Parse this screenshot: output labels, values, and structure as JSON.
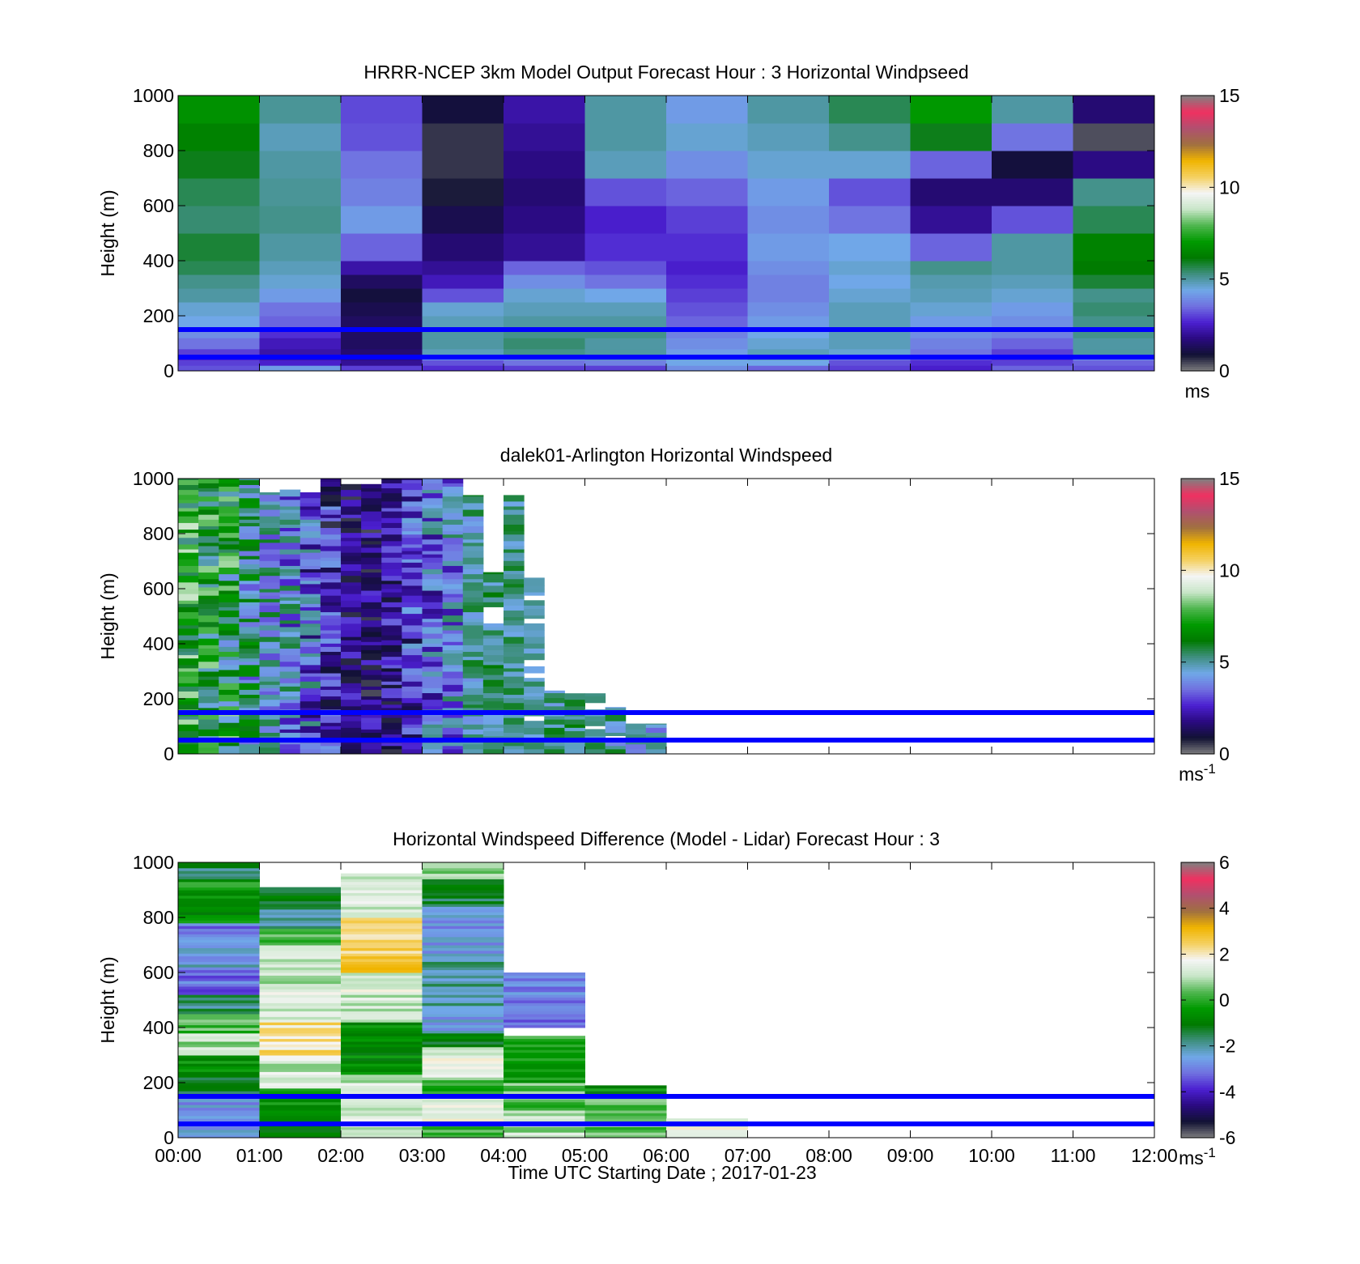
{
  "figure": {
    "xlabel": "Time UTC  Starting Date ; 2017-01-23",
    "x_ticks": [
      "00:00",
      "01:00",
      "02:00",
      "03:00",
      "04:00",
      "05:00",
      "06:00",
      "07:00",
      "08:00",
      "09:00",
      "10:00",
      "11:00",
      "12:00"
    ],
    "y_ticks": [
      "0",
      "200",
      "400",
      "600",
      "800",
      "1000"
    ],
    "ylabel": "Height (m)"
  },
  "colors": {
    "reference_lines": "#0000ff",
    "colormap": [
      "#808080",
      "#111133",
      "#2a0a80",
      "#4b1fd0",
      "#7070e0",
      "#70a8e8",
      "#3f8f80",
      "#007a00",
      "#009a00",
      "#4fb64f",
      "#c8e6c8",
      "#f5f5f5",
      "#f5d060",
      "#f0b400",
      "#a07040",
      "#b05070",
      "#f03060",
      "#808080"
    ]
  },
  "chart_data": [
    {
      "type": "heatmap",
      "title": "HRRR-NCEP 3km Model Output   Forecast Hour : 3 Horizontal Windpseed",
      "ylabel": "Height (m)",
      "xlim": [
        0,
        12
      ],
      "ylim": [
        0,
        1000
      ],
      "colorbar": {
        "min": 0,
        "max": 15,
        "ticks": [
          "0",
          "5",
          "10",
          "15"
        ],
        "unit": "ms",
        "superscript": ""
      },
      "reference_lines_y": [
        50,
        150
      ],
      "layer_edges": [
        0,
        20,
        40,
        60,
        80,
        120,
        160,
        200,
        250,
        300,
        350,
        400,
        500,
        600,
        700,
        800,
        900,
        1000
      ],
      "columns": [
        [
          3.2,
          3.0,
          2.6,
          3.0,
          3.6,
          4.0,
          4.4,
          4.6,
          5.0,
          5.2,
          5.6,
          5.8,
          5.4,
          5.6,
          6.0,
          6.4,
          6.8
        ],
        [
          4.2,
          2.6,
          2.2,
          2.2,
          2.4,
          2.8,
          3.4,
          3.6,
          4.2,
          4.6,
          4.8,
          5.0,
          5.2,
          5.1,
          5.0,
          4.8,
          5.1
        ],
        [
          3.0,
          2.0,
          1.8,
          1.6,
          1.4,
          1.4,
          1.4,
          1.2,
          1.0,
          1.4,
          2.2,
          3.4,
          4.2,
          3.8,
          3.6,
          3.2,
          3.1
        ],
        [
          2.8,
          3.2,
          4.2,
          4.8,
          5.0,
          5.0,
          4.8,
          4.6,
          3.2,
          2.4,
          2.0,
          1.6,
          1.2,
          0.8,
          0.6,
          0.6,
          1.0
        ],
        [
          3.0,
          3.6,
          4.6,
          5.2,
          5.4,
          5.2,
          5.0,
          4.8,
          4.6,
          4.0,
          3.4,
          2.0,
          1.8,
          1.6,
          1.8,
          2.0,
          2.2
        ],
        [
          3.0,
          3.8,
          4.8,
          5.0,
          5.0,
          5.2,
          5.0,
          4.8,
          4.4,
          3.6,
          3.2,
          2.8,
          2.6,
          3.2,
          4.8,
          5.0,
          5.0
        ],
        [
          4.0,
          4.4,
          4.6,
          4.2,
          4.0,
          3.8,
          3.4,
          3.2,
          3.0,
          2.8,
          2.6,
          2.8,
          3.0,
          3.4,
          4.0,
          4.6,
          4.2
        ],
        [
          3.4,
          4.4,
          4.8,
          4.8,
          4.6,
          4.4,
          4.2,
          4.0,
          3.8,
          3.8,
          4.0,
          4.2,
          4.0,
          4.2,
          4.6,
          4.8,
          5.0
        ],
        [
          3.0,
          3.2,
          3.8,
          4.6,
          4.8,
          4.8,
          4.8,
          4.8,
          4.6,
          4.4,
          4.6,
          4.4,
          3.6,
          3.2,
          4.6,
          5.2,
          5.6
        ],
        [
          2.6,
          2.8,
          3.2,
          3.6,
          3.8,
          4.0,
          4.2,
          4.6,
          4.8,
          4.9,
          5.2,
          3.4,
          2.0,
          1.6,
          3.4,
          6.0,
          7.0
        ],
        [
          3.4,
          3.0,
          2.8,
          3.0,
          3.4,
          3.8,
          4.0,
          4.2,
          4.6,
          4.8,
          5.0,
          5.0,
          3.2,
          1.6,
          1.0,
          3.6,
          5.0
        ],
        [
          3.2,
          3.4,
          4.2,
          5.0,
          5.0,
          5.2,
          5.2,
          5.4,
          5.2,
          5.8,
          6.2,
          6.4,
          5.6,
          5.2,
          1.8,
          0.4,
          1.6
        ]
      ]
    },
    {
      "type": "heatmap",
      "title": "dalek01-Arlington  Horizontal Windspeed",
      "ylabel": "Height (m)",
      "xlim": [
        0,
        12
      ],
      "ylim": [
        0,
        1000
      ],
      "colorbar": {
        "min": 0,
        "max": 15,
        "ticks": [
          "0",
          "5",
          "10",
          "15"
        ],
        "unit": "ms",
        "superscript": "-1"
      },
      "reference_lines_y": [
        50,
        150
      ],
      "time_step_hours": 0.25,
      "time_bins_start_hour": 0.0,
      "columns": [
        {
          "top": 1000,
          "low": 5.2,
          "high": 9.0
        },
        {
          "top": 1000,
          "low": 4.4,
          "high": 8.6
        },
        {
          "top": 1000,
          "low": 4.0,
          "high": 8.6
        },
        {
          "top": 1000,
          "low": 3.0,
          "high": 7.0
        },
        {
          "top": 950,
          "low": 3.0,
          "high": 6.0
        },
        {
          "top": 960,
          "low": 2.0,
          "high": 5.8
        },
        {
          "top": 950,
          "low": 1.2,
          "high": 5.6
        },
        {
          "top": 1000,
          "low": 0.6,
          "high": 4.2
        },
        {
          "top": 980,
          "low": 0.4,
          "high": 3.0
        },
        {
          "top": 980,
          "low": 0.4,
          "high": 3.0
        },
        {
          "top": 1000,
          "low": 0.6,
          "high": 3.4
        },
        {
          "top": 1000,
          "low": 1.0,
          "high": 4.6
        },
        {
          "top": 1000,
          "low": 1.6,
          "high": 5.4
        },
        {
          "top": 1000,
          "low": 2.2,
          "high": 5.6
        },
        {
          "top": 940,
          "low": 4.0,
          "high": 6.0
        },
        {
          "top": 660,
          "low": 4.2,
          "high": 6.2
        },
        {
          "top": 940,
          "low": 4.4,
          "high": 6.0
        },
        {
          "top": 640,
          "low": 4.4,
          "high": 5.6
        },
        {
          "top": 230,
          "low": 4.2,
          "high": 6.2
        },
        {
          "top": 220,
          "low": 4.2,
          "high": 6.6
        },
        {
          "top": 220,
          "low": 4.6,
          "high": 6.0
        },
        {
          "top": 170,
          "low": 3.8,
          "high": 6.2
        },
        {
          "top": 110,
          "low": 3.2,
          "high": 5.4
        },
        {
          "top": 110,
          "low": 3.4,
          "high": 5.6
        }
      ]
    },
    {
      "type": "heatmap",
      "title": "Horizontal Windspeed Difference (Model - Lidar) Forecast Hour : 3",
      "xlabel": "Time UTC  Starting Date ; 2017-01-23",
      "ylabel": "Height (m)",
      "xlim": [
        0,
        12
      ],
      "ylim": [
        0,
        1000
      ],
      "colorbar": {
        "min": -6,
        "max": 6,
        "ticks": [
          "-6",
          "-4",
          "-2",
          "0",
          "2",
          "4",
          "6"
        ],
        "unit": "ms",
        "superscript": "-1"
      },
      "reference_lines_y": [
        50,
        150
      ],
      "columns": [
        {
          "x0": 0,
          "x1": 1,
          "segments": [
            [
              0,
              150,
              -2.6
            ],
            [
              150,
              220,
              -1.6
            ],
            [
              220,
              300,
              -0.6
            ],
            [
              300,
              380,
              0.9
            ],
            [
              380,
              450,
              0.2
            ],
            [
              450,
              520,
              -1.8
            ],
            [
              520,
              620,
              -3.2
            ],
            [
              620,
              700,
              -2.4
            ],
            [
              700,
              780,
              -3.0
            ],
            [
              780,
              850,
              -0.6
            ],
            [
              850,
              940,
              -0.4
            ],
            [
              940,
              1000,
              -1.6
            ]
          ]
        },
        {
          "x0": 1,
          "x1": 2,
          "segments": [
            [
              0,
              60,
              -0.8
            ],
            [
              60,
              180,
              -0.4
            ],
            [
              180,
              280,
              1.2
            ],
            [
              280,
              420,
              2.2
            ],
            [
              420,
              560,
              1.4
            ],
            [
              560,
              700,
              1.0
            ],
            [
              700,
              760,
              0.2
            ],
            [
              760,
              850,
              -1.8
            ],
            [
              850,
              910,
              -1.0
            ]
          ]
        },
        {
          "x0": 2,
          "x1": 3,
          "segments": [
            [
              0,
              230,
              1.2
            ],
            [
              230,
              420,
              -0.6
            ],
            [
              420,
              520,
              1.2
            ],
            [
              520,
              600,
              1.4
            ],
            [
              600,
              720,
              2.6
            ],
            [
              720,
              800,
              2.4
            ],
            [
              800,
              960,
              1.2
            ]
          ]
        },
        {
          "x0": 3,
          "x1": 4,
          "segments": [
            [
              0,
              60,
              0.3
            ],
            [
              60,
              160,
              1.6
            ],
            [
              160,
              210,
              -0.2
            ],
            [
              210,
              330,
              1.4
            ],
            [
              330,
              380,
              -1.2
            ],
            [
              380,
              460,
              -2.6
            ],
            [
              460,
              640,
              -2.0
            ],
            [
              640,
              840,
              -2.6
            ],
            [
              840,
              940,
              -1.4
            ],
            [
              940,
              1000,
              0.8
            ]
          ]
        },
        {
          "x0": 4,
          "x1": 5,
          "segments": [
            [
              0,
              100,
              1.0
            ],
            [
              100,
              200,
              0.4
            ],
            [
              200,
              290,
              -0.4
            ],
            [
              290,
              360,
              -0.2
            ],
            [
              360,
              370,
              0.6
            ],
            [
              400,
              600,
              -3.0
            ]
          ]
        },
        {
          "x0": 5,
          "x1": 6,
          "segments": [
            [
              0,
              100,
              0.5
            ],
            [
              100,
              160,
              0.2
            ],
            [
              160,
              190,
              -0.6
            ]
          ]
        },
        {
          "x0": 6,
          "x1": 7,
          "segments": [
            [
              0,
              70,
              1.4
            ]
          ]
        }
      ]
    }
  ]
}
